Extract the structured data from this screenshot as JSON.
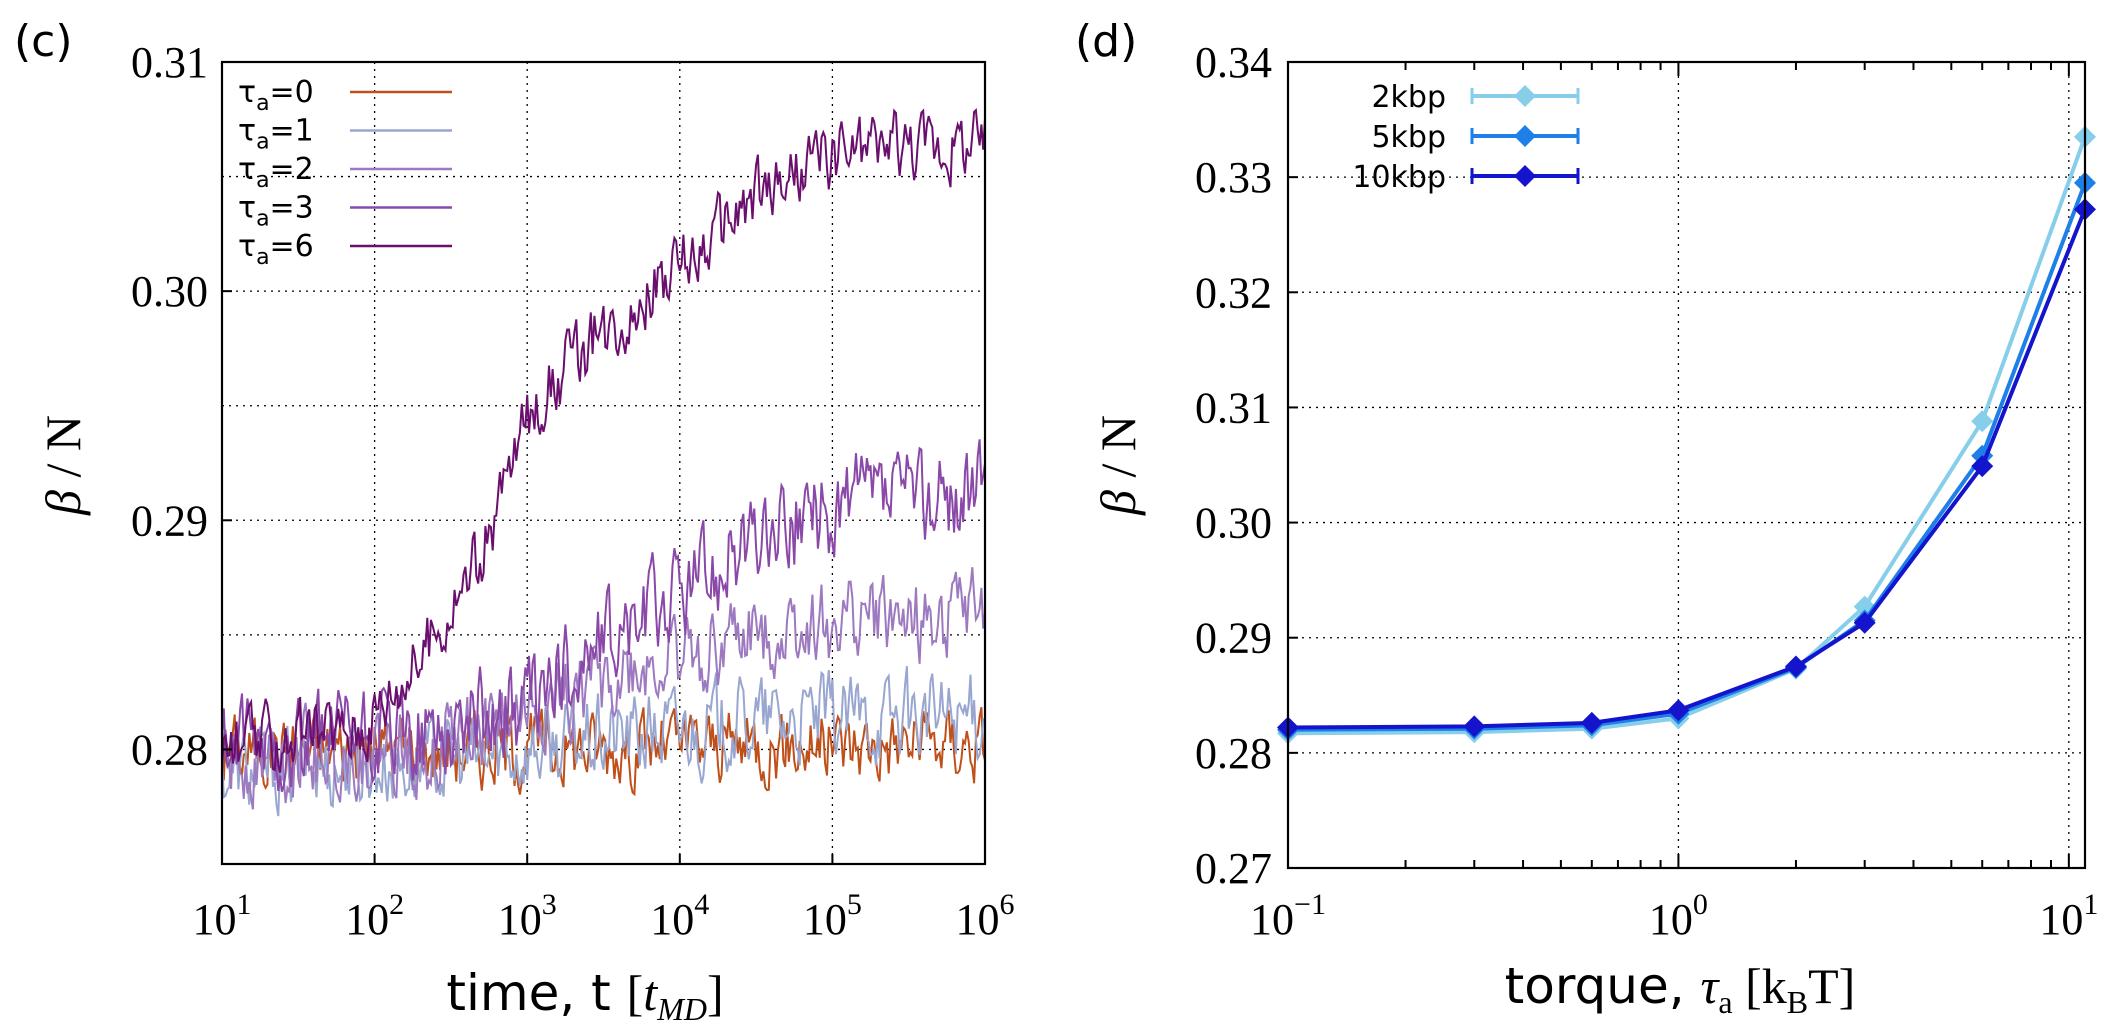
{
  "chart_data": [
    {
      "type": "line",
      "panel_label": "(c)",
      "xscale": "log",
      "xlim": [
        10,
        1000000
      ],
      "ylim": [
        0.275,
        0.31
      ],
      "xlabel_prefix": "time, t ",
      "xlabel_unit": "t",
      "xlabel_unit_sub": "MD",
      "ylabel_symbol": "β",
      "ylabel_rest": " / N",
      "y_ticks": [
        {
          "value": 0.28,
          "label": "0.28"
        },
        {
          "value": 0.29,
          "label": "0.29"
        },
        {
          "value": 0.3,
          "label": "0.30"
        },
        {
          "value": 0.31,
          "label": "0.31"
        }
      ],
      "y_minor_grid": [
        0.285,
        0.295,
        0.305
      ],
      "x_ticks": [
        {
          "value": 10,
          "base": "10",
          "exp": "1"
        },
        {
          "value": 100,
          "base": "10",
          "exp": "2"
        },
        {
          "value": 1000,
          "base": "10",
          "exp": "3"
        },
        {
          "value": 10000,
          "base": "10",
          "exp": "4"
        },
        {
          "value": 100000,
          "base": "10",
          "exp": "5"
        },
        {
          "value": 1000000,
          "base": "10",
          "exp": "6"
        }
      ],
      "legend_position": "top-left",
      "series": [
        {
          "label": "τa=0",
          "tau": "0",
          "color": "#c0501a",
          "start": 0.28,
          "final": 0.2803,
          "curve": [
            [
              1,
              0.28
            ],
            [
              3,
              0.2801
            ],
            [
              4,
              0.2802
            ],
            [
              6,
              0.2803
            ]
          ],
          "noise": 0.0014
        },
        {
          "label": "τa=1",
          "tau": "1",
          "color": "#98a6d0",
          "start": 0.279,
          "final": 0.2815,
          "curve": [
            [
              1,
              0.279
            ],
            [
              2.5,
              0.2795
            ],
            [
              3.5,
              0.2805
            ],
            [
              4.5,
              0.2812
            ],
            [
              6,
              0.2815
            ]
          ],
          "noise": 0.0016
        },
        {
          "label": "τa=2",
          "tau": "2",
          "color": "#9d79bf",
          "start": 0.2795,
          "final": 0.2855,
          "curve": [
            [
              1,
              0.2795
            ],
            [
              2.3,
              0.28
            ],
            [
              3,
              0.2815
            ],
            [
              3.5,
              0.283
            ],
            [
              4,
              0.284
            ],
            [
              4.5,
              0.285
            ],
            [
              5,
              0.2855
            ],
            [
              6,
              0.2858
            ]
          ],
          "noise": 0.0016
        },
        {
          "label": "τa=3",
          "tau": "3",
          "color": "#8a48a8",
          "start": 0.28,
          "final": 0.291,
          "curve": [
            [
              1,
              0.28
            ],
            [
              2.2,
              0.2805
            ],
            [
              3,
              0.282
            ],
            [
              3.5,
              0.2845
            ],
            [
              4,
              0.287
            ],
            [
              4.5,
              0.289
            ],
            [
              5,
              0.2905
            ],
            [
              5.5,
              0.291
            ],
            [
              6,
              0.291
            ]
          ],
          "noise": 0.0018
        },
        {
          "label": "τa=6",
          "tau": "6",
          "color": "#6a0f6e",
          "start": 0.28,
          "final": 0.3065,
          "curve": [
            [
              1,
              0.28
            ],
            [
              1.9,
              0.281
            ],
            [
              2.3,
              0.284
            ],
            [
              2.7,
              0.2885
            ],
            [
              3,
              0.2945
            ],
            [
              3.3,
              0.297
            ],
            [
              3.7,
              0.2995
            ],
            [
              4,
              0.301
            ],
            [
              4.5,
              0.304
            ],
            [
              5,
              0.306
            ],
            [
              5.5,
              0.3065
            ],
            [
              6,
              0.3065
            ]
          ],
          "noise": 0.0013
        }
      ]
    },
    {
      "type": "line",
      "panel_label": "(d)",
      "xscale": "log",
      "xlim": [
        0.1,
        11
      ],
      "ylim": [
        0.27,
        0.34
      ],
      "xlabel_prefix": "torque, ",
      "xlabel_sym": "τ",
      "xlabel_sym_sub": "a",
      "xlabel_unit_open": " [k",
      "xlabel_unit_sub": "B",
      "xlabel_unit_close": "T]",
      "ylabel_symbol": "β",
      "ylabel_rest": " / N",
      "y_ticks": [
        {
          "value": 0.27,
          "label": "0.27"
        },
        {
          "value": 0.28,
          "label": "0.28"
        },
        {
          "value": 0.29,
          "label": "0.29"
        },
        {
          "value": 0.3,
          "label": "0.30"
        },
        {
          "value": 0.31,
          "label": "0.31"
        },
        {
          "value": 0.32,
          "label": "0.32"
        },
        {
          "value": 0.33,
          "label": "0.33"
        },
        {
          "value": 0.34,
          "label": "0.34"
        }
      ],
      "x_ticks": [
        {
          "value": 0.1,
          "base": "10",
          "exp": "−1"
        },
        {
          "value": 1,
          "base": "10",
          "exp": "0"
        },
        {
          "value": 10,
          "base": "10",
          "exp": "1"
        }
      ],
      "x_grid": [
        0.1,
        1,
        10
      ],
      "legend_position": "top-left",
      "x": [
        0.1,
        0.3,
        0.6,
        1.0,
        2.0,
        3.0,
        6.0,
        11.0
      ],
      "series": [
        {
          "name": "2kbp",
          "color": "#87ceeb",
          "values": [
            0.2817,
            0.2818,
            0.2821,
            0.283,
            0.2873,
            0.2927,
            0.3088,
            0.3335
          ]
        },
        {
          "name": "5kbp",
          "color": "#1e7fe8",
          "values": [
            0.282,
            0.2821,
            0.2824,
            0.2834,
            0.2874,
            0.2915,
            0.3058,
            0.3295
          ]
        },
        {
          "name": "10kbp",
          "color": "#1414cc",
          "values": [
            0.2822,
            0.2823,
            0.2826,
            0.2837,
            0.2875,
            0.2913,
            0.3049,
            0.3272
          ]
        }
      ]
    }
  ]
}
